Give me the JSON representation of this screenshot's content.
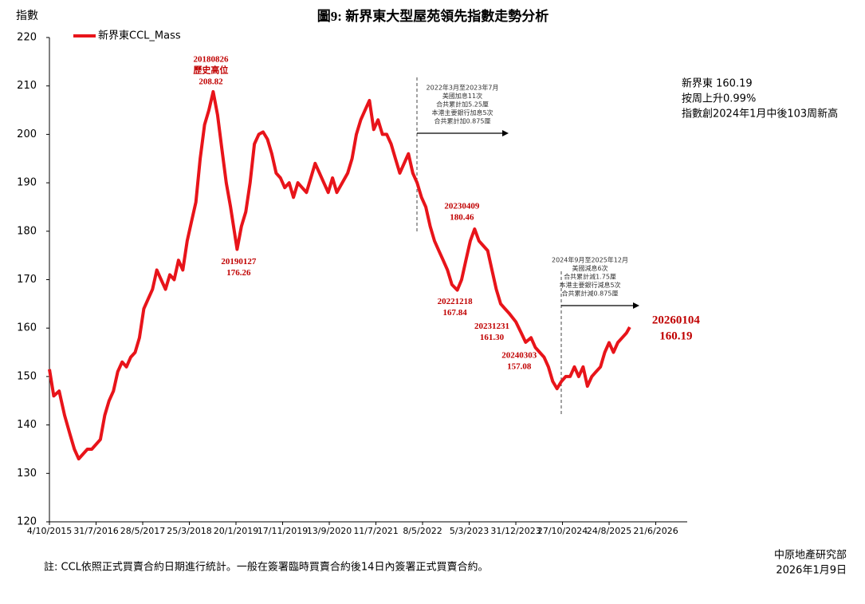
{
  "chart_data": {
    "type": "line",
    "title": "圖9: 新界東大型屋苑領先指數走勢分析",
    "y_label": "指數",
    "ylim": [
      120,
      220
    ],
    "yticks": [
      120,
      130,
      140,
      150,
      160,
      170,
      180,
      190,
      200,
      210,
      220
    ],
    "xlim": [
      "2015-10-04",
      "2027-01-10"
    ],
    "xticks": [
      {
        "value": "2015-10-04",
        "label": "4/10/2015"
      },
      {
        "value": "2016-07-31",
        "label": "31/7/2016"
      },
      {
        "value": "2017-05-28",
        "label": "28/5/2017"
      },
      {
        "value": "2018-03-25",
        "label": "25/3/2018"
      },
      {
        "value": "2019-01-20",
        "label": "20/1/2019"
      },
      {
        "value": "2019-11-17",
        "label": "17/11/2019"
      },
      {
        "value": "2020-09-13",
        "label": "13/9/2020"
      },
      {
        "value": "2021-07-11",
        "label": "11/7/2021"
      },
      {
        "value": "2022-05-08",
        "label": "8/5/2022"
      },
      {
        "value": "2023-03-05",
        "label": "5/3/2023"
      },
      {
        "value": "2023-12-31",
        "label": "31/12/2023"
      },
      {
        "value": "2024-10-27",
        "label": "27/10/2024"
      },
      {
        "value": "2025-08-24",
        "label": "24/8/2025"
      },
      {
        "value": "2026-06-21",
        "label": "21/6/2026"
      }
    ],
    "x": [
      "2015-10-04",
      "2015-11-01",
      "2015-12-06",
      "2016-01-10",
      "2016-02-14",
      "2016-03-13",
      "2016-04-10",
      "2016-05-08",
      "2016-06-05",
      "2016-07-03",
      "2016-07-31",
      "2016-08-28",
      "2016-09-25",
      "2016-10-23",
      "2016-11-20",
      "2016-12-18",
      "2017-01-15",
      "2017-02-12",
      "2017-03-12",
      "2017-04-09",
      "2017-05-07",
      "2017-06-04",
      "2017-07-02",
      "2017-07-30",
      "2017-08-27",
      "2017-09-24",
      "2017-10-22",
      "2017-11-19",
      "2017-12-17",
      "2018-01-14",
      "2018-02-11",
      "2018-03-11",
      "2018-04-08",
      "2018-05-06",
      "2018-06-03",
      "2018-07-01",
      "2018-07-29",
      "2018-08-26",
      "2018-09-23",
      "2018-10-21",
      "2018-11-18",
      "2018-12-16",
      "2019-01-27",
      "2019-02-24",
      "2019-03-24",
      "2019-04-21",
      "2019-05-19",
      "2019-06-16",
      "2019-07-14",
      "2019-08-11",
      "2019-09-08",
      "2019-10-06",
      "2019-11-03",
      "2019-12-01",
      "2019-12-29",
      "2020-01-26",
      "2020-02-23",
      "2020-03-22",
      "2020-04-19",
      "2020-05-17",
      "2020-06-14",
      "2020-07-12",
      "2020-08-09",
      "2020-09-06",
      "2020-10-04",
      "2020-11-01",
      "2020-12-06",
      "2021-01-10",
      "2021-02-07",
      "2021-03-07",
      "2021-04-04",
      "2021-05-02",
      "2021-05-30",
      "2021-06-27",
      "2021-07-25",
      "2021-08-22",
      "2021-09-19",
      "2021-10-17",
      "2021-11-14",
      "2021-12-12",
      "2022-01-09",
      "2022-02-06",
      "2022-03-06",
      "2022-04-03",
      "2022-05-01",
      "2022-05-29",
      "2022-06-26",
      "2022-07-24",
      "2022-08-21",
      "2022-09-18",
      "2022-10-16",
      "2022-11-13",
      "2022-12-18",
      "2023-01-15",
      "2023-02-12",
      "2023-03-12",
      "2023-04-09",
      "2023-05-07",
      "2023-06-04",
      "2023-07-02",
      "2023-07-30",
      "2023-08-27",
      "2023-09-24",
      "2023-10-22",
      "2023-11-19",
      "2023-12-31",
      "2024-02-04",
      "2024-03-03",
      "2024-04-07",
      "2024-05-05",
      "2024-06-02",
      "2024-06-30",
      "2024-07-28",
      "2024-08-25",
      "2024-09-22",
      "2024-10-20",
      "2024-11-17",
      "2024-12-15",
      "2025-01-12",
      "2025-02-09",
      "2025-03-09",
      "2025-04-06",
      "2025-05-04",
      "2025-06-01",
      "2025-06-29",
      "2025-07-27",
      "2025-08-24",
      "2025-09-21",
      "2025-10-19",
      "2025-11-16",
      "2025-12-14",
      "2026-01-04"
    ],
    "series": [
      {
        "name": "新界東CCL_Mass",
        "color": "#e8141a",
        "values": [
          151.5,
          146,
          147,
          142,
          138,
          135,
          133,
          134,
          135,
          135,
          136,
          137,
          142,
          145,
          147,
          151,
          153,
          152,
          154,
          155,
          158,
          164,
          166,
          168,
          172,
          170,
          168,
          171,
          170,
          174,
          172,
          178,
          182,
          186,
          195,
          202,
          205,
          208.82,
          204,
          197,
          190,
          185,
          176.26,
          181,
          184,
          190,
          198,
          200,
          200.5,
          199,
          196,
          192,
          191,
          189,
          190,
          187,
          190,
          189,
          188,
          191,
          194,
          192,
          190,
          188,
          191,
          188,
          190,
          192,
          195,
          200,
          203,
          205,
          207,
          201,
          203,
          200,
          200,
          198,
          195,
          192,
          194,
          196,
          192,
          190,
          187,
          185,
          181,
          178,
          176,
          174,
          172,
          169,
          167.84,
          170,
          174,
          178,
          180.46,
          178,
          177,
          176,
          172,
          168,
          165,
          164,
          163,
          161.3,
          159,
          157.08,
          158,
          156,
          155,
          154,
          152,
          149,
          147.5,
          149,
          150,
          150,
          152,
          150,
          152,
          148,
          150,
          151,
          152,
          155,
          157,
          155,
          157,
          158,
          159,
          160.19
        ]
      }
    ],
    "annotations": [
      {
        "x": "2018-08-26",
        "y": 208.82,
        "text": [
          "20180826",
          "歷史高位"
        ],
        "label": "208.82"
      },
      {
        "x": "2019-01-27",
        "y": 176.26,
        "text": [
          "20190127"
        ],
        "label": "176.26"
      },
      {
        "x": "2022-12-18",
        "y": 167.84,
        "text": [
          "20221218"
        ],
        "label": "167.84"
      },
      {
        "x": "2023-04-09",
        "y": 180.46,
        "text": [
          "20230409"
        ],
        "label": "180.46"
      },
      {
        "x": "2023-12-31",
        "y": 161.3,
        "text": [
          "20231231"
        ],
        "label": "161.30"
      },
      {
        "x": "2024-03-03",
        "y": 157.08,
        "text": [
          "20240303"
        ],
        "label": "157.08"
      },
      {
        "x": "2026-01-04",
        "y": 160.19,
        "text": [
          "20260104"
        ],
        "label": "160.19"
      }
    ],
    "policy_notes": [
      [
        "2022年3月至2023年7月",
        "美國加息11次",
        "合共累計加5.25厘",
        "本港主要銀行加息5次",
        "合共累計加0.875厘"
      ],
      [
        "2024年9月至2025年12月",
        "美國減息6次",
        "合共累計減1.75厘",
        "本港主要銀行減息5次",
        "合共累計減0.875厘"
      ]
    ],
    "info": [
      "新界東 160.19",
      "按周上升0.99%",
      "指數創2024年1月中後103周新高"
    ],
    "footnote": "註: CCL依照正式買賣合約日期進行統計。一般在簽署臨時買賣合約後14日內簽署正式買賣合約。",
    "source": "中原地產研究部",
    "date": "2026年1月9日"
  }
}
